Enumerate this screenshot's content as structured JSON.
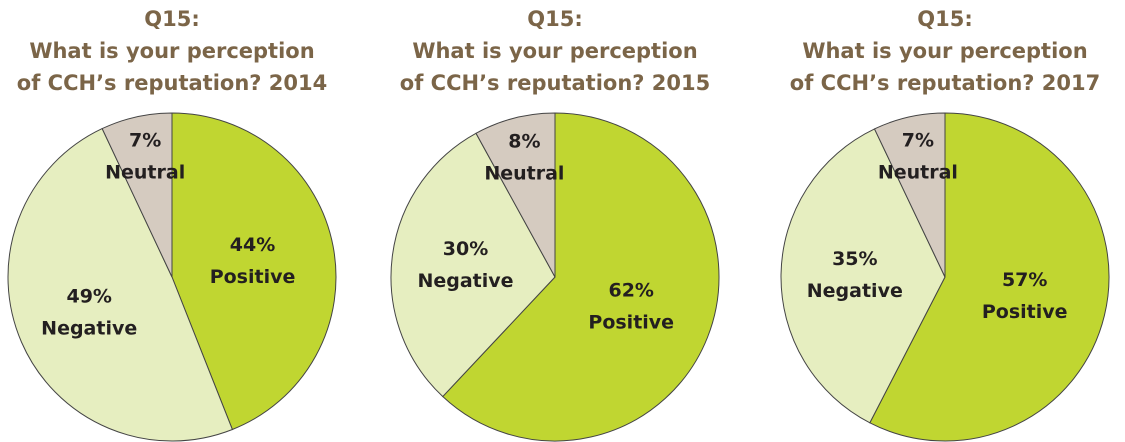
{
  "chart_data": [
    {
      "type": "pie",
      "title": [
        "Q15:",
        "What is your perception",
        "of CCH’s reputation? 2014"
      ],
      "categories": [
        "Positive",
        "Negative",
        "Neutral"
      ],
      "values": [
        44,
        49,
        7
      ],
      "value_labels": [
        "44%",
        "49%",
        "7%"
      ],
      "colors": [
        "#c0d631",
        "#e6eec0",
        "#d5cbc0"
      ]
    },
    {
      "type": "pie",
      "title": [
        "Q15:",
        "What is your perception",
        "of CCH’s reputation? 2015"
      ],
      "categories": [
        "Positive",
        "Negative",
        "Neutral"
      ],
      "values": [
        62,
        30,
        8
      ],
      "value_labels": [
        "62%",
        "30%",
        "8%"
      ],
      "colors": [
        "#c0d631",
        "#e6eec0",
        "#d5cbc0"
      ]
    },
    {
      "type": "pie",
      "title": [
        "Q15:",
        "What is your perception",
        "of CCH’s reputation? 2017"
      ],
      "categories": [
        "Positive",
        "Negative",
        "Neutral"
      ],
      "values": [
        57,
        35,
        7
      ],
      "value_labels": [
        "57%",
        "35%",
        "7%"
      ],
      "colors": [
        "#c0d631",
        "#e6eec0",
        "#d5cbc0"
      ]
    }
  ]
}
